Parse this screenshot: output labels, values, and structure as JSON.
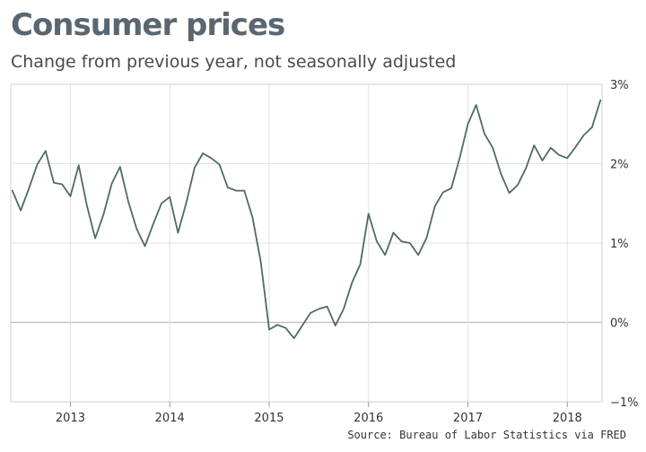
{
  "chart_data": {
    "type": "line",
    "title": "Consumer prices",
    "subtitle": "Change from previous year, not seasonally adjusted",
    "xlabel": "",
    "ylabel": "",
    "x_start": 2012.4167,
    "x_step": 0.083333,
    "xlim": [
      2012.4,
      2018.35
    ],
    "ylim": [
      -1,
      3
    ],
    "yticks": [
      3,
      2,
      1,
      0,
      -1
    ],
    "ytick_labels": [
      "3%",
      "2%",
      "1%",
      "0%",
      "−1%"
    ],
    "xticks": [
      2013,
      2014,
      2015,
      2016,
      2017,
      2018
    ],
    "xtick_labels": [
      "2013",
      "2014",
      "2015",
      "2016",
      "2017",
      "2018"
    ],
    "grid": true,
    "series": [
      {
        "name": "Consumer prices",
        "color": "#4e6b67",
        "values": [
          1.66,
          1.41,
          1.69,
          1.99,
          2.16,
          1.76,
          1.74,
          1.59,
          1.98,
          1.47,
          1.06,
          1.36,
          1.75,
          1.96,
          1.52,
          1.18,
          0.96,
          1.24,
          1.5,
          1.58,
          1.13,
          1.51,
          1.95,
          2.13,
          2.07,
          1.99,
          1.7,
          1.66,
          1.66,
          1.32,
          0.76,
          -0.09,
          -0.03,
          -0.07,
          -0.2,
          -0.04,
          0.12,
          0.17,
          0.2,
          -0.04,
          0.17,
          0.5,
          0.73,
          1.37,
          1.02,
          0.85,
          1.13,
          1.02,
          1.0,
          0.85,
          1.06,
          1.46,
          1.64,
          1.69,
          2.07,
          2.5,
          2.74,
          2.38,
          2.2,
          1.87,
          1.63,
          1.73,
          1.94,
          2.23,
          2.04,
          2.2,
          2.11,
          2.07,
          2.21,
          2.36,
          2.46,
          2.8
        ]
      }
    ]
  },
  "source": "Source: Bureau of Labor Statistics via FRED"
}
